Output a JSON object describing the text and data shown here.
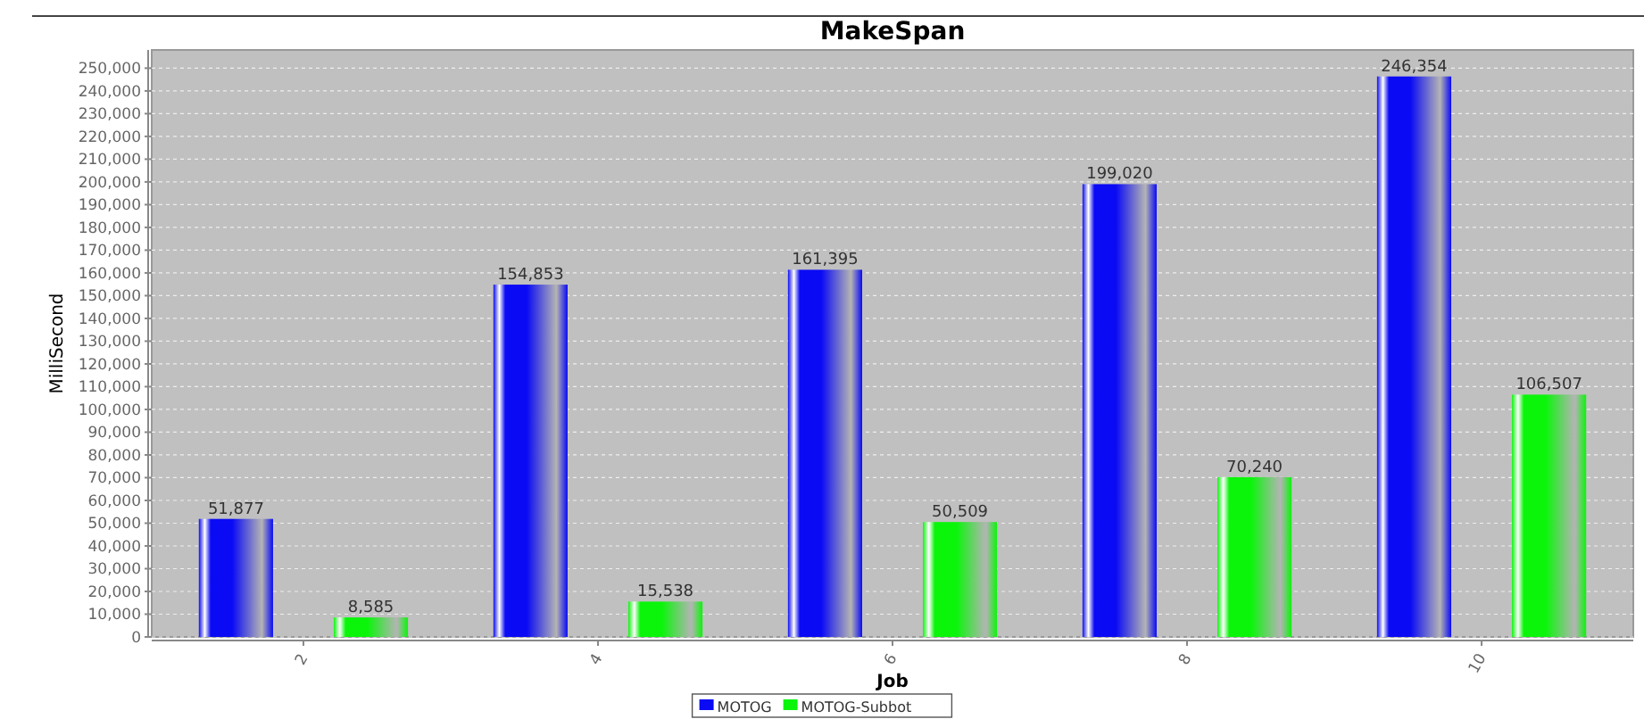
{
  "chart_data": {
    "type": "bar",
    "title": "MakeSpan",
    "xlabel": "Job",
    "ylabel": "MilliSecond",
    "categories": [
      "2",
      "4",
      "6",
      "8",
      "10"
    ],
    "series": [
      {
        "name": "MOTOG",
        "color": "#0a0af5",
        "values": [
          51877,
          154853,
          161395,
          199020,
          246354
        ],
        "value_labels": [
          "51,877",
          "154,853",
          "161,395",
          "199,020",
          "246,354"
        ]
      },
      {
        "name": "MOTOG-Subbot",
        "color": "#0af50a",
        "values": [
          8585,
          15538,
          50509,
          70240,
          106507
        ],
        "value_labels": [
          "8,585",
          "15,538",
          "50,509",
          "70,240",
          "106,507"
        ]
      }
    ],
    "ylim": [
      0,
      258000
    ],
    "yticks": [
      {
        "value": 0,
        "label": "0"
      },
      {
        "value": 10000,
        "label": "10,000"
      },
      {
        "value": 20000,
        "label": "20,000"
      },
      {
        "value": 30000,
        "label": "30,000"
      },
      {
        "value": 40000,
        "label": "40,000"
      },
      {
        "value": 50000,
        "label": "50,000"
      },
      {
        "value": 60000,
        "label": "60,000"
      },
      {
        "value": 70000,
        "label": "70,000"
      },
      {
        "value": 80000,
        "label": "80,000"
      },
      {
        "value": 90000,
        "label": "90,000"
      },
      {
        "value": 100000,
        "label": "100,000"
      },
      {
        "value": 110000,
        "label": "110,000"
      },
      {
        "value": 120000,
        "label": "120,000"
      },
      {
        "value": 130000,
        "label": "130,000"
      },
      {
        "value": 140000,
        "label": "140,000"
      },
      {
        "value": 150000,
        "label": "150,000"
      },
      {
        "value": 160000,
        "label": "160,000"
      },
      {
        "value": 170000,
        "label": "170,000"
      },
      {
        "value": 180000,
        "label": "180,000"
      },
      {
        "value": 190000,
        "label": "190,000"
      },
      {
        "value": 200000,
        "label": "200,000"
      },
      {
        "value": 210000,
        "label": "210,000"
      },
      {
        "value": 220000,
        "label": "220,000"
      },
      {
        "value": 230000,
        "label": "230,000"
      },
      {
        "value": 240000,
        "label": "240,000"
      },
      {
        "value": 250000,
        "label": "250,000"
      }
    ],
    "grid": "y",
    "legend": "bottom"
  }
}
